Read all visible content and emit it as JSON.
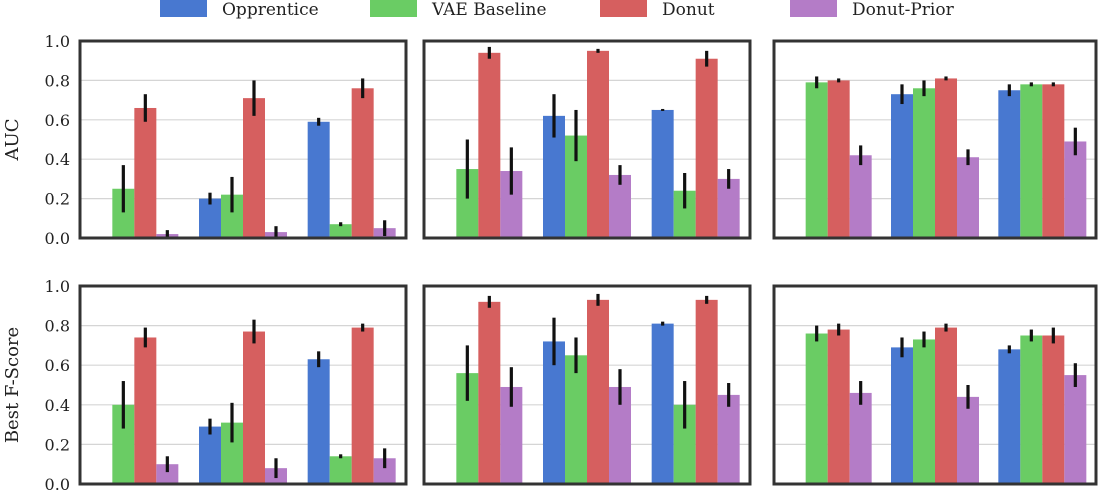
{
  "chart_data": {
    "type": "bar",
    "legend": {
      "placement": "top",
      "entries": [
        {
          "label": "Opprentice",
          "color": "#4878d0"
        },
        {
          "label": "VAE Baseline",
          "color": "#6acc64"
        },
        {
          "label": "Donut",
          "color": "#d65f5f"
        },
        {
          "label": "Donut-Prior",
          "color": "#b47cc7"
        }
      ]
    },
    "ylim": [
      0,
      1.0
    ],
    "yticks": [
      "0.0",
      "0.2",
      "0.4",
      "0.6",
      "0.8",
      "1.0"
    ],
    "grid": true,
    "rows": [
      {
        "ylabel": "AUC",
        "panels": [
          {
            "groups": [
              {
                "values": [
                  null,
                  0.25,
                  0.66,
                  0.02
                ],
                "errors": [
                  null,
                  0.12,
                  0.07,
                  0.02
                ]
              },
              {
                "values": [
                  0.2,
                  0.22,
                  0.71,
                  0.03
                ],
                "errors": [
                  0.03,
                  0.09,
                  0.09,
                  0.03
                ]
              },
              {
                "values": [
                  0.59,
                  0.07,
                  0.76,
                  0.05
                ],
                "errors": [
                  0.02,
                  0.01,
                  0.05,
                  0.04
                ]
              }
            ]
          },
          {
            "groups": [
              {
                "values": [
                  null,
                  0.35,
                  0.94,
                  0.34
                ],
                "errors": [
                  null,
                  0.15,
                  0.03,
                  0.12
                ]
              },
              {
                "values": [
                  0.62,
                  0.52,
                  0.95,
                  0.32
                ],
                "errors": [
                  0.11,
                  0.13,
                  0.01,
                  0.05
                ]
              },
              {
                "values": [
                  0.65,
                  0.24,
                  0.91,
                  0.3
                ],
                "errors": [
                  0.005,
                  0.09,
                  0.04,
                  0.05
                ]
              }
            ]
          },
          {
            "groups": [
              {
                "values": [
                  null,
                  0.79,
                  0.8,
                  0.42
                ],
                "errors": [
                  null,
                  0.03,
                  0.01,
                  0.05
                ]
              },
              {
                "values": [
                  0.73,
                  0.76,
                  0.81,
                  0.41
                ],
                "errors": [
                  0.05,
                  0.04,
                  0.01,
                  0.04
                ]
              },
              {
                "values": [
                  0.75,
                  0.78,
                  0.78,
                  0.49
                ],
                "errors": [
                  0.03,
                  0.01,
                  0.01,
                  0.07
                ]
              }
            ]
          }
        ]
      },
      {
        "ylabel": "Best F-Score",
        "panels": [
          {
            "groups": [
              {
                "values": [
                  null,
                  0.4,
                  0.74,
                  0.1
                ],
                "errors": [
                  null,
                  0.12,
                  0.05,
                  0.04
                ]
              },
              {
                "values": [
                  0.29,
                  0.31,
                  0.77,
                  0.08
                ],
                "errors": [
                  0.04,
                  0.1,
                  0.06,
                  0.05
                ]
              },
              {
                "values": [
                  0.63,
                  0.14,
                  0.79,
                  0.13
                ],
                "errors": [
                  0.04,
                  0.01,
                  0.02,
                  0.05
                ]
              }
            ]
          },
          {
            "groups": [
              {
                "values": [
                  null,
                  0.56,
                  0.92,
                  0.49
                ],
                "errors": [
                  null,
                  0.14,
                  0.03,
                  0.1
                ]
              },
              {
                "values": [
                  0.72,
                  0.65,
                  0.93,
                  0.49
                ],
                "errors": [
                  0.12,
                  0.09,
                  0.03,
                  0.09
                ]
              },
              {
                "values": [
                  0.81,
                  0.4,
                  0.93,
                  0.45
                ],
                "errors": [
                  0.01,
                  0.12,
                  0.02,
                  0.06
                ]
              }
            ]
          },
          {
            "groups": [
              {
                "values": [
                  null,
                  0.76,
                  0.78,
                  0.46
                ],
                "errors": [
                  null,
                  0.04,
                  0.03,
                  0.06
                ]
              },
              {
                "values": [
                  0.69,
                  0.73,
                  0.79,
                  0.44
                ],
                "errors": [
                  0.05,
                  0.04,
                  0.02,
                  0.06
                ]
              },
              {
                "values": [
                  0.68,
                  0.75,
                  0.75,
                  0.55
                ],
                "errors": [
                  0.02,
                  0.03,
                  0.04,
                  0.06
                ]
              }
            ]
          }
        ]
      }
    ]
  }
}
